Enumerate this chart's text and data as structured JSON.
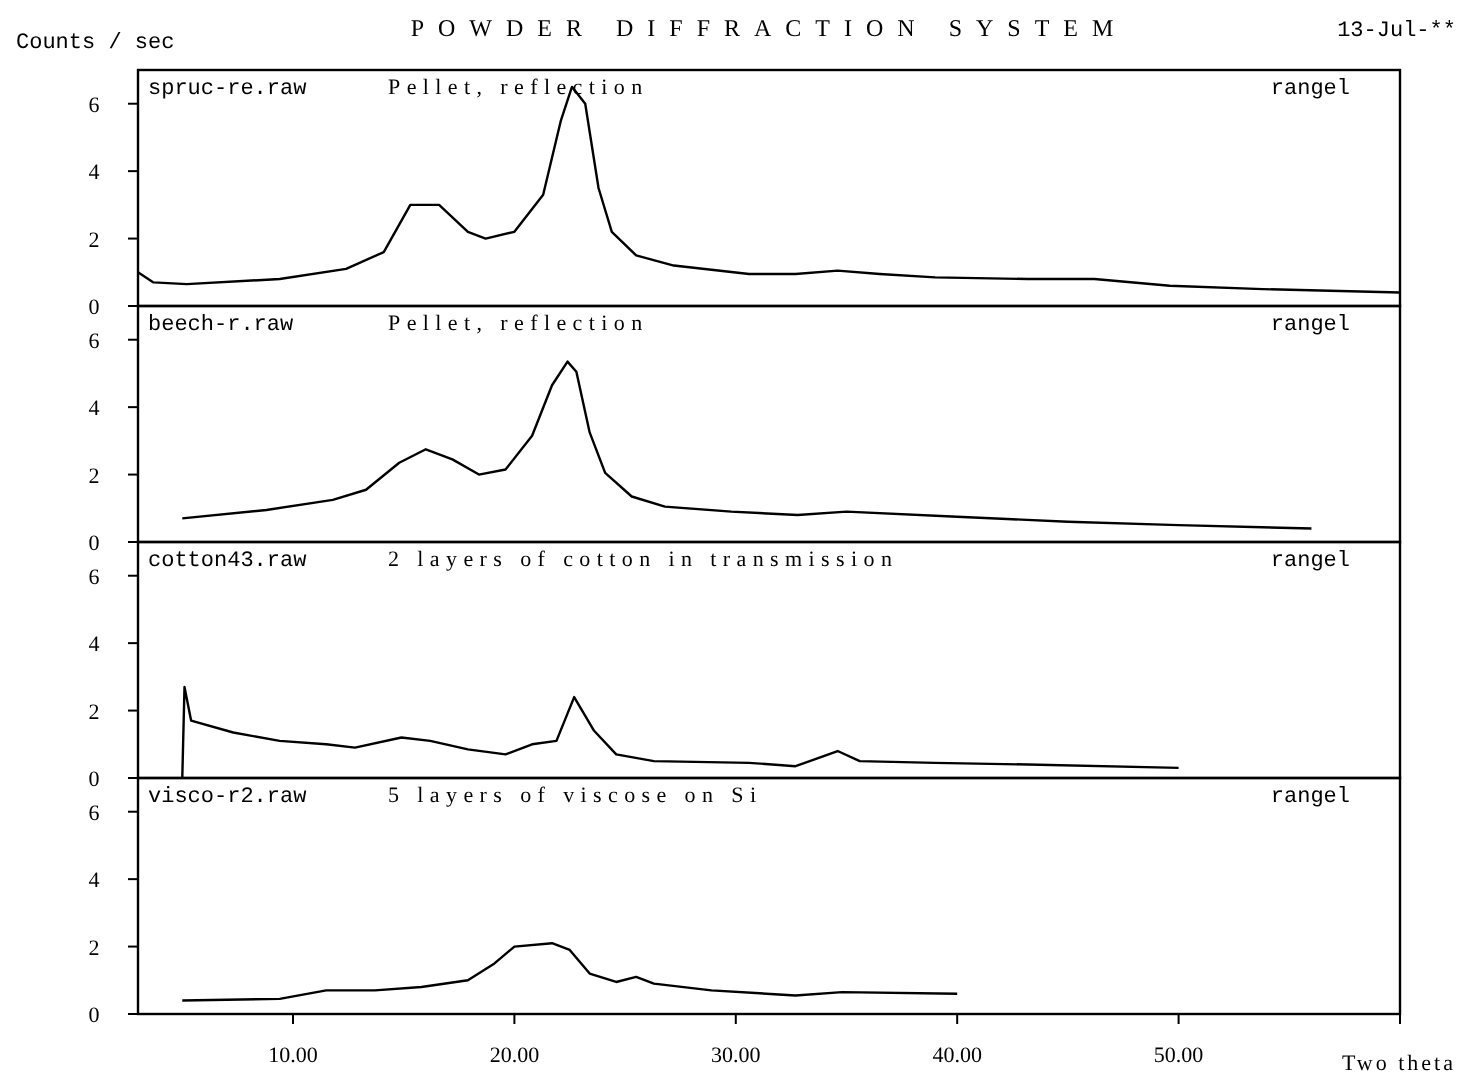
{
  "chart_data": [
    {
      "type": "line",
      "title": "POWDER DIFFRACTION SYSTEM",
      "ylabel": "Counts / sec",
      "annotations": [
        "spruc-re.raw",
        "Pellet, reflection",
        "rangel",
        "13-Jul-**"
      ],
      "xlim": [
        3,
        60
      ],
      "ylim": [
        0,
        7
      ],
      "yticks": [
        0,
        2,
        4,
        6
      ],
      "tick_labels": "y",
      "grid": false,
      "series": [
        {
          "color": "#000000",
          "x": [
            3,
            3.7,
            5.2,
            9.4,
            12.4,
            14.1,
            15.3,
            16.6,
            17.9,
            18.7,
            20,
            21.3,
            22.1,
            22.6,
            23.2,
            23.8,
            24.4,
            25.5,
            27.2,
            30.6,
            32.7,
            34.6,
            36.5,
            39,
            43.2,
            46.2,
            49.6,
            53.8,
            60
          ],
          "values": [
            1.0,
            0.7,
            0.65,
            0.8,
            1.1,
            1.6,
            3.0,
            3.0,
            2.2,
            2.0,
            2.2,
            3.3,
            5.5,
            6.5,
            6.0,
            3.5,
            2.2,
            1.5,
            1.2,
            0.95,
            0.95,
            1.05,
            0.95,
            0.85,
            0.8,
            0.8,
            0.6,
            0.5,
            0.4
          ]
        }
      ]
    },
    {
      "type": "line",
      "annotations": [
        "beech-r.raw",
        "Pellet, reflection",
        "rangel"
      ],
      "xlim": [
        3,
        60
      ],
      "ylim": [
        0,
        7
      ],
      "yticks": [
        0,
        2,
        4,
        6
      ],
      "tick_labels": "y",
      "grid": false,
      "series": [
        {
          "color": "#000000",
          "x": [
            5,
            8.8,
            11.8,
            13.3,
            14.8,
            16,
            17.2,
            18.4,
            19.6,
            20.8,
            21.7,
            22.4,
            22.8,
            23.4,
            24.1,
            25.3,
            26.8,
            29.8,
            32.8,
            35,
            40,
            45,
            50,
            56
          ],
          "values": [
            0.7,
            0.95,
            1.25,
            1.55,
            2.35,
            2.75,
            2.45,
            2.0,
            2.15,
            3.15,
            4.65,
            5.35,
            5.05,
            3.25,
            2.05,
            1.35,
            1.05,
            0.9,
            0.8,
            0.9,
            0.75,
            0.6,
            0.5,
            0.4
          ]
        }
      ]
    },
    {
      "type": "line",
      "annotations": [
        "cotton43.raw",
        "2 layers of cotton in transmission",
        "rangel"
      ],
      "xlim": [
        3,
        60
      ],
      "ylim": [
        0,
        7
      ],
      "yticks": [
        0,
        2,
        4,
        6
      ],
      "tick_labels": "y",
      "grid": false,
      "series": [
        {
          "color": "#000000",
          "x": [
            5,
            5.1,
            5.4,
            7.3,
            9.4,
            11.5,
            12.8,
            14.9,
            16.2,
            17.9,
            19.6,
            20.8,
            21.9,
            22.7,
            23.6,
            24.6,
            26.3,
            30.6,
            32.7,
            34.6,
            35.6,
            39,
            43.2,
            50
          ],
          "values": [
            0,
            2.7,
            1.7,
            1.35,
            1.1,
            1.0,
            0.9,
            1.2,
            1.1,
            0.85,
            0.7,
            1.0,
            1.1,
            2.4,
            1.4,
            0.7,
            0.5,
            0.45,
            0.35,
            0.8,
            0.5,
            0.45,
            0.4,
            0.3
          ]
        }
      ]
    },
    {
      "type": "line",
      "xlabel": "Two theta",
      "annotations": [
        "visco-r2.raw",
        "5 layers of viscose on Si",
        "rangel"
      ],
      "xlim": [
        3,
        60
      ],
      "ylim": [
        0,
        7
      ],
      "yticks": [
        0,
        2,
        4,
        6
      ],
      "xticks": [
        {
          "value": 10,
          "label": "10.00"
        },
        {
          "value": 20,
          "label": "20.00"
        },
        {
          "value": 30,
          "label": "30.00"
        },
        {
          "value": 40,
          "label": "40.00"
        },
        {
          "value": 50,
          "label": "50.00"
        },
        {
          "value": 60,
          "label": null
        }
      ],
      "grid": false,
      "series": [
        {
          "color": "#000000",
          "x": [
            5,
            9.4,
            11.5,
            13.7,
            15.8,
            17.9,
            19.1,
            20,
            21.7,
            22.5,
            23.4,
            24.6,
            25.5,
            26.3,
            28.9,
            32.7,
            34.8,
            40
          ],
          "values": [
            0.4,
            0.45,
            0.7,
            0.7,
            0.8,
            1.0,
            1.5,
            2.0,
            2.1,
            1.9,
            1.2,
            0.95,
            1.1,
            0.9,
            0.7,
            0.55,
            0.65,
            0.6
          ]
        }
      ]
    }
  ]
}
